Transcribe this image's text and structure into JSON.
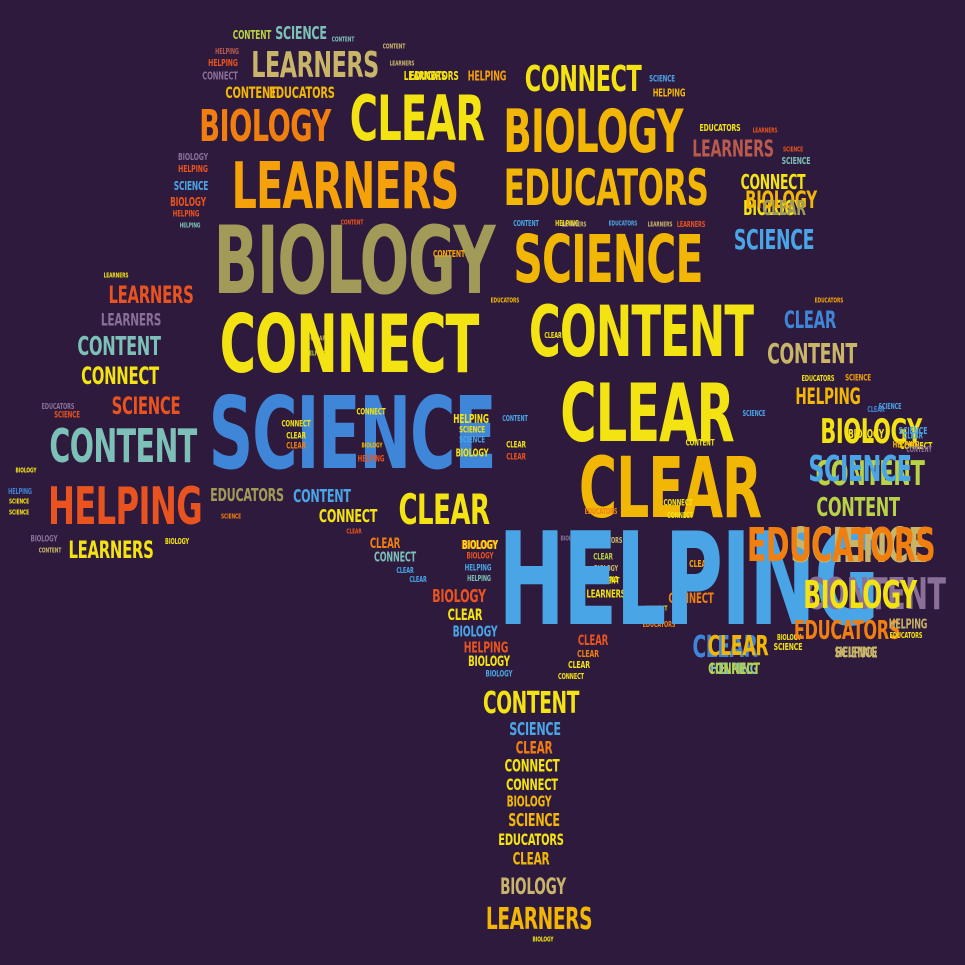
{
  "background": "#2d1a3c",
  "palette": {
    "yellow": "#f3e312",
    "gold": "#f2b705",
    "amber": "#f5a20a",
    "orange": "#f07f10",
    "red": "#e8531f",
    "olive": "#a29a58",
    "khaki": "#c9b56a",
    "teal": "#7dc0b8",
    "sky": "#4aa5e6",
    "blue": "#3f86d9",
    "lime": "#b8d245",
    "mauve": "#8a6f98",
    "brick": "#b85a4e"
  },
  "words": [
    {
      "text": "CONTENT",
      "color": "lime"
    },
    {
      "text": "SCIENCE",
      "color": "teal"
    },
    {
      "text": "CONTENT",
      "color": "teal"
    },
    {
      "text": "HELPING",
      "color": "brick"
    },
    {
      "text": "HELPING",
      "color": "red"
    },
    {
      "text": "LEARNERS",
      "color": "khaki"
    },
    {
      "text": "CONNECT",
      "color": "mauve"
    },
    {
      "text": "CONTENT",
      "color": "gold"
    },
    {
      "text": "EDUCATORS",
      "color": "gold"
    },
    {
      "text": "CLEAR",
      "color": "yellow"
    },
    {
      "text": "BIOLOGY",
      "color": "orange"
    },
    {
      "text": "LEARNERS",
      "color": "amber"
    },
    {
      "text": "CONTENT",
      "color": "khaki"
    },
    {
      "text": "LEARNERS",
      "color": "khaki"
    },
    {
      "text": "LEARNERS",
      "color": "yellow"
    },
    {
      "text": "EDUCATORS",
      "color": "yellow"
    },
    {
      "text": "HELPING",
      "color": "amber"
    },
    {
      "text": "CONNECT",
      "color": "yellow"
    },
    {
      "text": "SCIENCE",
      "color": "sky"
    },
    {
      "text": "HELPING",
      "color": "gold"
    },
    {
      "text": "BIOLOGY",
      "color": "gold"
    },
    {
      "text": "EDUCATORS",
      "color": "yellow"
    },
    {
      "text": "LEARNERS",
      "color": "red"
    },
    {
      "text": "LEARNERS",
      "color": "brick"
    },
    {
      "text": "SCIENCE",
      "color": "red"
    },
    {
      "text": "SCIENCE",
      "color": "teal"
    },
    {
      "text": "EDUCATORS",
      "color": "gold"
    },
    {
      "text": "CONNECT",
      "color": "yellow"
    },
    {
      "text": "BIOLOGY",
      "color": "yellow"
    },
    {
      "text": "BIOLOGY",
      "color": "mauve"
    },
    {
      "text": "HELPING",
      "color": "red"
    },
    {
      "text": "SCIENCE",
      "color": "sky"
    },
    {
      "text": "BIOLOGY",
      "color": "red"
    },
    {
      "text": "HELPING",
      "color": "red"
    },
    {
      "text": "HELPING",
      "color": "teal"
    },
    {
      "text": "CONTENT",
      "color": "red"
    },
    {
      "text": "BIOLOGY",
      "color": "olive"
    },
    {
      "text": "CONTENT",
      "color": "amber"
    },
    {
      "text": "CONTENT",
      "color": "sky"
    },
    {
      "text": "SCIENCE",
      "color": "gold"
    },
    {
      "text": "HELPING",
      "color": "yellow"
    },
    {
      "text": "LEARNERS",
      "color": "khaki"
    },
    {
      "text": "EDUCATORS",
      "color": "sky"
    },
    {
      "text": "LEARNERS",
      "color": "khaki"
    },
    {
      "text": "LEARNERS",
      "color": "red"
    },
    {
      "text": "SCIENCE",
      "color": "sky"
    },
    {
      "text": "LEARNERS",
      "color": "yellow"
    },
    {
      "text": "LEARNERS",
      "color": "red"
    },
    {
      "text": "LEARNERS",
      "color": "mauve"
    },
    {
      "text": "EDUCATORS",
      "color": "amber"
    },
    {
      "text": "EDUCATORS",
      "color": "gold"
    },
    {
      "text": "CONTENT",
      "color": "yellow"
    },
    {
      "text": "CLEAR",
      "color": "blue"
    },
    {
      "text": "CLEAR",
      "color": "yellow"
    },
    {
      "text": "CONTENT",
      "color": "khaki"
    },
    {
      "text": "CONTENT",
      "color": "teal"
    },
    {
      "text": "CONNECT",
      "color": "yellow"
    },
    {
      "text": "CLEAR",
      "color": "khaki"
    },
    {
      "text": "HELPING",
      "color": "lime"
    },
    {
      "text": "CONNECT",
      "color": "yellow"
    },
    {
      "text": "EDUCATORS",
      "color": "yellow"
    },
    {
      "text": "SCIENCE",
      "color": "amber"
    },
    {
      "text": "SCIENCE",
      "color": "red"
    },
    {
      "text": "EDUCATORS",
      "color": "mauve"
    },
    {
      "text": "HELPING",
      "color": "gold"
    },
    {
      "text": "SCIENCE",
      "color": "sky"
    },
    {
      "text": "SCIENCE",
      "color": "red"
    },
    {
      "text": "SCIENCE",
      "color": "sky"
    },
    {
      "text": "CONTENT",
      "color": "teal"
    },
    {
      "text": "SCIENCE",
      "color": "blue"
    },
    {
      "text": "CLEAR",
      "color": "yellow"
    },
    {
      "text": "CONNECT",
      "color": "yellow"
    },
    {
      "text": "CONNECT",
      "color": "yellow"
    },
    {
      "text": "CLEAR",
      "color": "yellow"
    },
    {
      "text": "CLEAR",
      "color": "orange"
    },
    {
      "text": "HELPING",
      "color": "yellow"
    },
    {
      "text": "CONTENT",
      "color": "sky"
    },
    {
      "text": "BIOLOGY",
      "color": "gold"
    },
    {
      "text": "SCIENCE",
      "color": "yellow"
    },
    {
      "text": "SCIENCE",
      "color": "sky"
    },
    {
      "text": "BIOLOGY",
      "color": "yellow"
    },
    {
      "text": "BIOLOGY",
      "color": "yellow"
    },
    {
      "text": "CLEAR",
      "color": "sky"
    },
    {
      "text": "CONNECT",
      "color": "yellow"
    },
    {
      "text": "CLEAR",
      "color": "yellow"
    },
    {
      "text": "CLEAR",
      "color": "red"
    },
    {
      "text": "HELPING",
      "color": "red"
    },
    {
      "text": "BIOLOGY",
      "color": "yellow"
    },
    {
      "text": "CONTENT",
      "color": "lime"
    },
    {
      "text": "HELPING",
      "color": "blue"
    },
    {
      "text": "HELPING",
      "color": "red"
    },
    {
      "text": "SCIENCE",
      "color": "yellow"
    },
    {
      "text": "SCIENCE",
      "color": "yellow"
    },
    {
      "text": "CLEAR",
      "color": "gold"
    },
    {
      "text": "EDUCATORS",
      "color": "olive"
    },
    {
      "text": "CONTENT",
      "color": "sky"
    },
    {
      "text": "SCIENCE",
      "color": "orange"
    },
    {
      "text": "CLEAR",
      "color": "yellow"
    },
    {
      "text": "CONNECT",
      "color": "yellow"
    },
    {
      "text": "CLEAR",
      "color": "red"
    },
    {
      "text": "EDUCATORS",
      "color": "orange"
    },
    {
      "text": "CONNECT",
      "color": "yellow"
    },
    {
      "text": "CONNECT",
      "color": "yellow"
    },
    {
      "text": "BIOLOGY",
      "color": "mauve"
    },
    {
      "text": "CONTENT",
      "color": "khaki"
    },
    {
      "text": "LEARNERS",
      "color": "yellow"
    },
    {
      "text": "BIOLOGY",
      "color": "yellow"
    },
    {
      "text": "BIOLOGY",
      "color": "red"
    },
    {
      "text": "CLEAR",
      "color": "orange"
    },
    {
      "text": "BIOLOGY",
      "color": "mauve"
    },
    {
      "text": "CONNECT",
      "color": "teal"
    },
    {
      "text": "CLEAR",
      "color": "sky"
    },
    {
      "text": "BIOLOGY",
      "color": "yellow"
    },
    {
      "text": "BIOLOGY",
      "color": "red"
    },
    {
      "text": "HELPING",
      "color": "sky"
    },
    {
      "text": "BIOLOGY",
      "color": "khaki"
    },
    {
      "text": "HELPING",
      "color": "teal"
    },
    {
      "text": "HELPING",
      "color": "yellow"
    },
    {
      "text": "CLEAR",
      "color": "sky"
    },
    {
      "text": "CLEAR",
      "color": "amber"
    },
    {
      "text": "BIOLOGY",
      "color": "red"
    },
    {
      "text": "CLEAR",
      "color": "yellow"
    },
    {
      "text": "BIOLOGY",
      "color": "sky"
    },
    {
      "text": "HELPING",
      "color": "red"
    },
    {
      "text": "CONNECT",
      "color": "yellow"
    },
    {
      "text": "BIOLOGY",
      "color": "yellow"
    },
    {
      "text": "BIOLOGY",
      "color": "sky"
    },
    {
      "text": "CLEAR",
      "color": "red"
    },
    {
      "text": "CLEAR",
      "color": "orange"
    },
    {
      "text": "CLEAR",
      "color": "yellow"
    },
    {
      "text": "CONNECT",
      "color": "yellow"
    },
    {
      "text": "LEARNERS",
      "color": "yellow"
    },
    {
      "text": "CONTENT",
      "color": "yellow"
    },
    {
      "text": "CLEAR",
      "color": "lime"
    },
    {
      "text": "CONNECT",
      "color": "orange"
    },
    {
      "text": "EDUCATORS",
      "color": "orange"
    },
    {
      "text": "EDUCATORS",
      "color": "khaki"
    },
    {
      "text": "HELPING",
      "color": "sky"
    },
    {
      "text": "CLEAR",
      "color": "blue"
    },
    {
      "text": "HELPING",
      "color": "teal"
    },
    {
      "text": "BIOLOGY",
      "color": "yellow"
    },
    {
      "text": "SCIENCE",
      "color": "yellow"
    },
    {
      "text": "CONTENT",
      "color": "yellow"
    },
    {
      "text": "SCIENCE",
      "color": "sky"
    },
    {
      "text": "CLEAR",
      "color": "orange"
    },
    {
      "text": "CONNECT",
      "color": "yellow"
    },
    {
      "text": "CONNECT",
      "color": "yellow"
    },
    {
      "text": "BIOLOGY",
      "color": "gold"
    },
    {
      "text": "SCIENCE",
      "color": "gold"
    },
    {
      "text": "EDUCATORS",
      "color": "yellow"
    },
    {
      "text": "CLEAR",
      "color": "gold"
    },
    {
      "text": "BIOLOGY",
      "color": "khaki"
    },
    {
      "text": "LEARNERS",
      "color": "gold"
    },
    {
      "text": "BIOLOGY",
      "color": "yellow"
    },
    {
      "text": "SCIENCE",
      "color": "khaki"
    },
    {
      "text": "CONTENT",
      "color": "mauve"
    },
    {
      "text": "EDUCATORS",
      "color": "orange"
    },
    {
      "text": "HELPING",
      "color": "khaki"
    },
    {
      "text": "SCIENCE",
      "color": "khaki"
    },
    {
      "text": "EDUCATORS",
      "color": "yellow"
    },
    {
      "text": "CLEAR",
      "color": "blue"
    },
    {
      "text": "CONTENT",
      "color": "yellow"
    },
    {
      "text": "BIOLOGY",
      "color": "gold"
    },
    {
      "text": "CLEAR",
      "color": "olive"
    },
    {
      "text": "SCIENCE",
      "color": "sky"
    },
    {
      "text": "BIOLOGY",
      "color": "yellow"
    },
    {
      "text": "HELPING",
      "color": "gold"
    },
    {
      "text": "SCIENCE",
      "color": "sky"
    },
    {
      "text": "CONTENT",
      "color": "lime"
    },
    {
      "text": "EDUCATORS",
      "color": "orange"
    },
    {
      "text": "CLEAR",
      "color": "gold"
    },
    {
      "text": "CONNECT",
      "color": "lime"
    },
    {
      "text": "BIOLOGY",
      "color": "yellow"
    },
    {
      "text": "HELPING",
      "color": "khaki"
    },
    {
      "text": "CONTENT",
      "color": "mauve"
    },
    {
      "text": "HELPING",
      "color": "teal"
    }
  ]
}
